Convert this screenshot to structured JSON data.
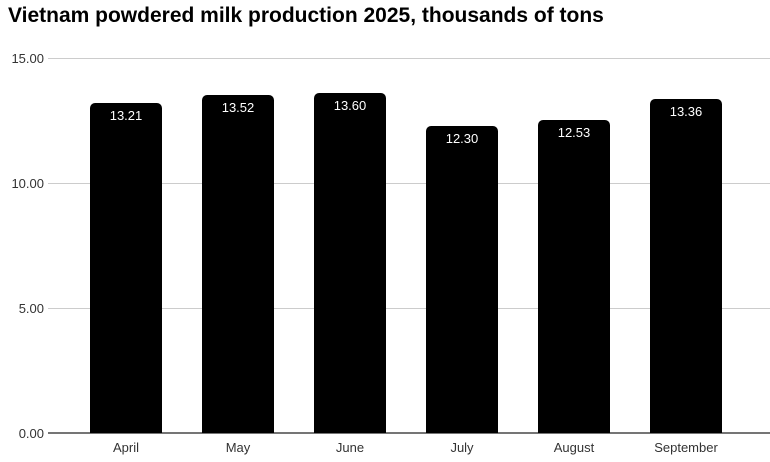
{
  "title": "Vietnam powdered milk production 2025, thousands of tons",
  "colors": {
    "background": "#ffffff",
    "bar": "#000000",
    "bar_label": "#ffffff",
    "gridline": "#cccccc",
    "axis_baseline": "#757575",
    "axis_text": "#333333",
    "title_text": "#000000"
  },
  "chart_data": {
    "type": "bar",
    "title": "Vietnam powdered milk production 2025, thousands of tons",
    "categories": [
      "April",
      "May",
      "June",
      "July",
      "August",
      "September"
    ],
    "values": [
      13.21,
      13.52,
      13.6,
      12.3,
      12.53,
      13.36
    ],
    "value_labels": [
      "13.21",
      "13.52",
      "13.60",
      "12.30",
      "12.53",
      "13.36"
    ],
    "xlabel": "",
    "ylabel": "",
    "ylim": [
      0,
      15
    ],
    "y_ticks": [
      0,
      5,
      10,
      15
    ],
    "y_tick_labels": [
      "0.00",
      "5.00",
      "10.00",
      "15.00"
    ],
    "grid": true,
    "legend": "none",
    "bar_color": "#000000",
    "value_label_color": "#ffffff",
    "value_label_position": "inside-top"
  }
}
